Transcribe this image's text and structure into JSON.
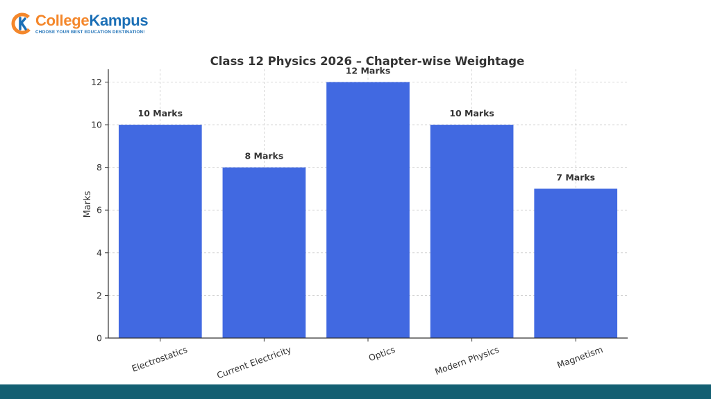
{
  "brand": {
    "name_part1": "College",
    "name_part2": "Kampus",
    "tagline": "CHOOSE YOUR BEST EDUCATION DESTINATION!",
    "orange": "#f4872b",
    "blue": "#1b6fb6"
  },
  "footer": {
    "color": "#135f72"
  },
  "chart_data": {
    "type": "bar",
    "title": "Class 12 Physics 2026 – Chapter-wise Weightage",
    "xlabel": "",
    "ylabel": "Marks",
    "categories": [
      "Electrostatics",
      "Current Electricity",
      "Optics",
      "Modern Physics",
      "Magnetism"
    ],
    "values": [
      10,
      8,
      12,
      10,
      7
    ],
    "data_labels": [
      "10 Marks",
      "8 Marks",
      "12 Marks",
      "10 Marks",
      "7 Marks"
    ],
    "ylim": [
      0,
      12.6
    ],
    "yticks": [
      0,
      2,
      4,
      6,
      8,
      10,
      12
    ],
    "grid": true,
    "bar_color": "#4169e1",
    "xtick_rotation": 20
  }
}
